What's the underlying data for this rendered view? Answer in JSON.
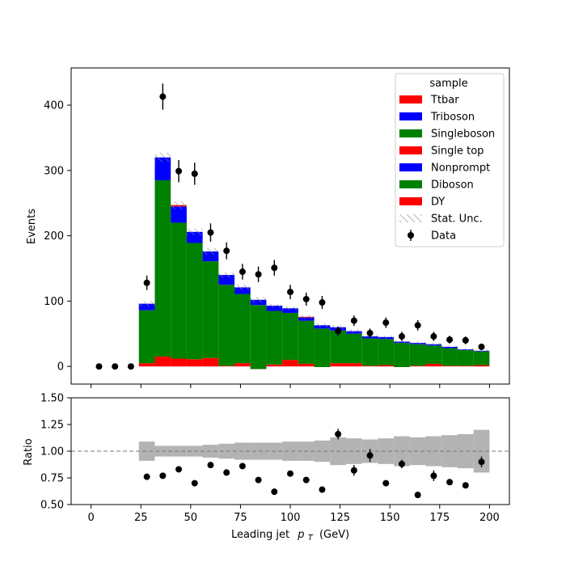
{
  "chart_data": {
    "type": "bar",
    "stacked": true,
    "xlabel_text": "Leading jet",
    "xlabel_symbol": "p",
    "xlabel_subscript": "T",
    "xlabel_unit": "(GeV)",
    "ylabel": "Events",
    "ratio_ylabel": "Ratio",
    "xlim": [
      -10,
      210
    ],
    "ylim": [
      -27,
      457
    ],
    "ratio_ylim": [
      0.5,
      1.5
    ],
    "xticks": [
      0,
      25,
      50,
      75,
      100,
      125,
      150,
      175,
      200
    ],
    "yticks": [
      0,
      100,
      200,
      300,
      400
    ],
    "ratio_yticks": [
      "0.50",
      "0.75",
      "1.00",
      "1.25",
      "1.50"
    ],
    "bin_edges": [
      24,
      32,
      40,
      48,
      56,
      64,
      72,
      80,
      88,
      96,
      104,
      112,
      120,
      128,
      136,
      144,
      152,
      160,
      168,
      176,
      184,
      192,
      200
    ],
    "series": [
      {
        "name": "DY",
        "color": "#ff0000",
        "values": [
          5,
          15,
          12,
          11,
          13,
          1,
          5,
          -4,
          3,
          10,
          4,
          -1,
          5,
          5,
          1,
          2,
          -1,
          1,
          4,
          1,
          1,
          2
        ]
      },
      {
        "name": "Diboson",
        "color": "#008000",
        "values": [
          81,
          270,
          208,
          178,
          148,
          124,
          106,
          98,
          82,
          72,
          66,
          59,
          50,
          45,
          42,
          40,
          37,
          33,
          28,
          27,
          24,
          21
        ]
      },
      {
        "name": "Nonprompt",
        "color": "#0000ff",
        "values": [
          10,
          35,
          25,
          17,
          15,
          15,
          10,
          8,
          8,
          7,
          5,
          5,
          5,
          4,
          3,
          3,
          2,
          2,
          2,
          2,
          1,
          1
        ]
      },
      {
        "name": "Single top",
        "color": "#ff0000",
        "values": [
          0,
          0,
          2,
          0,
          0,
          0,
          0,
          0,
          0,
          0,
          1,
          0,
          0,
          0,
          0,
          0,
          0,
          0,
          0,
          0,
          0,
          0
        ]
      },
      {
        "name": "Singleboson",
        "color": "#008000",
        "values": [
          0,
          0,
          0,
          0,
          0,
          0,
          0,
          0,
          0,
          0,
          0,
          0,
          0,
          0,
          0,
          0,
          0,
          0,
          0,
          0,
          0,
          0
        ]
      },
      {
        "name": "Triboson",
        "color": "#0000ff",
        "values": [
          0,
          0,
          0,
          0,
          0,
          0,
          0,
          0,
          0,
          0,
          0,
          0,
          0,
          0,
          0,
          0,
          0,
          0,
          0,
          0,
          0,
          0
        ]
      },
      {
        "name": "Ttbar",
        "color": "#ff0000",
        "values": [
          0,
          0,
          0,
          0,
          0,
          0,
          0,
          0,
          0,
          0,
          0,
          0,
          0,
          0,
          0,
          0,
          0,
          0,
          0,
          0,
          0,
          0
        ]
      }
    ],
    "stat_unc": [
      4,
      7,
      6,
      5,
      5,
      4,
      4,
      4,
      3,
      3,
      3,
      3,
      3,
      3,
      2,
      2,
      2,
      2,
      2,
      2,
      2,
      2
    ],
    "data": {
      "name": "Data",
      "x": [
        4,
        12,
        20,
        28,
        36,
        44,
        52,
        60,
        68,
        76,
        84,
        92,
        100,
        108,
        116,
        124,
        132,
        140,
        148,
        156,
        164,
        172,
        180,
        188,
        196
      ],
      "y": [
        0,
        0,
        0,
        128,
        413,
        299,
        295,
        205,
        177,
        145,
        141,
        151,
        114,
        103,
        98,
        54,
        70,
        51,
        67,
        46,
        63,
        46,
        41,
        40,
        30
      ],
      "err": [
        0,
        0,
        0,
        11,
        20,
        17,
        17,
        14,
        13,
        12,
        12,
        12,
        11,
        10,
        10,
        7,
        8,
        7,
        8,
        7,
        8,
        7,
        6,
        6,
        5
      ]
    },
    "ratio": {
      "x": [
        28,
        36,
        44,
        52,
        60,
        68,
        76,
        84,
        92,
        100,
        108,
        116,
        124,
        132,
        140,
        148,
        156,
        164,
        172,
        180,
        188,
        196
      ],
      "y": [
        0.76,
        0.77,
        0.83,
        0.7,
        0.87,
        0.8,
        0.86,
        0.73,
        0.62,
        0.79,
        0.73,
        0.64,
        1.16,
        0.82,
        0.96,
        0.7,
        0.88,
        0.59,
        0.77,
        0.71,
        0.68,
        0.9
      ],
      "err": [
        0.02,
        0.02,
        0.02,
        0.02,
        0.02,
        0.02,
        0.02,
        0.02,
        0.02,
        0.02,
        0.02,
        0.02,
        0.05,
        0.05,
        0.06,
        0.02,
        0.04,
        0.02,
        0.05,
        0.02,
        0.02,
        0.05
      ],
      "unc_band": [
        0.09,
        0.05,
        0.05,
        0.05,
        0.06,
        0.07,
        0.08,
        0.08,
        0.08,
        0.09,
        0.09,
        0.1,
        0.13,
        0.12,
        0.11,
        0.12,
        0.14,
        0.13,
        0.14,
        0.15,
        0.16,
        0.2
      ]
    },
    "legend": {
      "title": "sample",
      "position": "top-right",
      "entries": [
        {
          "label": "Ttbar",
          "kind": "patch",
          "color": "#ff0000"
        },
        {
          "label": "Triboson",
          "kind": "patch",
          "color": "#0000ff"
        },
        {
          "label": "Singleboson",
          "kind": "patch",
          "color": "#008000"
        },
        {
          "label": "Single top",
          "kind": "patch",
          "color": "#ff0000"
        },
        {
          "label": "Nonprompt",
          "kind": "patch",
          "color": "#0000ff"
        },
        {
          "label": "Diboson",
          "kind": "patch",
          "color": "#008000"
        },
        {
          "label": "DY",
          "kind": "patch",
          "color": "#ff0000"
        },
        {
          "label": "Stat. Unc.",
          "kind": "hatch",
          "color": "#888888"
        },
        {
          "label": "Data",
          "kind": "marker",
          "color": "#000000"
        }
      ]
    }
  }
}
